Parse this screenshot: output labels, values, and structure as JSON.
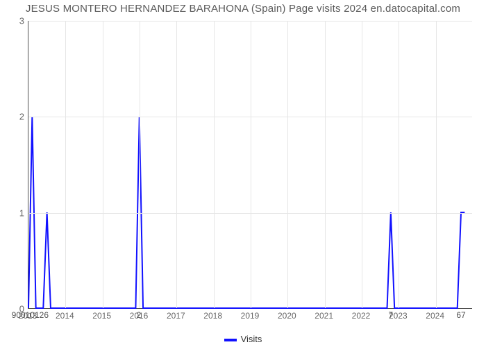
{
  "chart": {
    "type": "line",
    "title": "JESUS MONTERO HERNANDEZ BARAHONA (Spain) Page visits 2024 en.datocapital.com",
    "title_color": "#5a5a5a",
    "title_fontsize": 15,
    "background_color": "#ffffff",
    "grid_color": "#e6e6e6",
    "axis_color": "#4d4d4d",
    "tick_label_color": "#666666",
    "tick_fontsize": 13,
    "x_tick_fontsize": 12,
    "series_color": "#1111ff",
    "line_width": 2,
    "xlim_labels": [
      "2013",
      "2014",
      "2015",
      "2016",
      "2017",
      "2018",
      "2019",
      "2020",
      "2021",
      "2022",
      "2023",
      "2024"
    ],
    "x_min": 2013,
    "x_max": 2025,
    "ylim": [
      0,
      3
    ],
    "yticks": [
      0,
      1,
      2,
      3
    ],
    "data_points": [
      {
        "x": 2013.0,
        "y": 0
      },
      {
        "x": 2013.1,
        "y": 2
      },
      {
        "x": 2013.2,
        "y": 0
      },
      {
        "x": 2013.4,
        "y": 0
      },
      {
        "x": 2013.5,
        "y": 1
      },
      {
        "x": 2013.6,
        "y": 0
      },
      {
        "x": 2015.9,
        "y": 0
      },
      {
        "x": 2016.0,
        "y": 2
      },
      {
        "x": 2016.1,
        "y": 0
      },
      {
        "x": 2022.7,
        "y": 0
      },
      {
        "x": 2022.8,
        "y": 1
      },
      {
        "x": 2022.9,
        "y": 0
      },
      {
        "x": 2024.6,
        "y": 0
      },
      {
        "x": 2024.7,
        "y": 1
      },
      {
        "x": 2024.8,
        "y": 1
      }
    ],
    "point_labels": [
      {
        "x": 2013.0,
        "text": "9001012"
      },
      {
        "x": 2013.5,
        "text": "6"
      },
      {
        "x": 2016.0,
        "text": "2"
      },
      {
        "x": 2022.8,
        "text": "7"
      },
      {
        "x": 2024.7,
        "text": "67"
      }
    ],
    "legend": {
      "label": "Visits",
      "swatch_color": "#1111ff"
    }
  }
}
